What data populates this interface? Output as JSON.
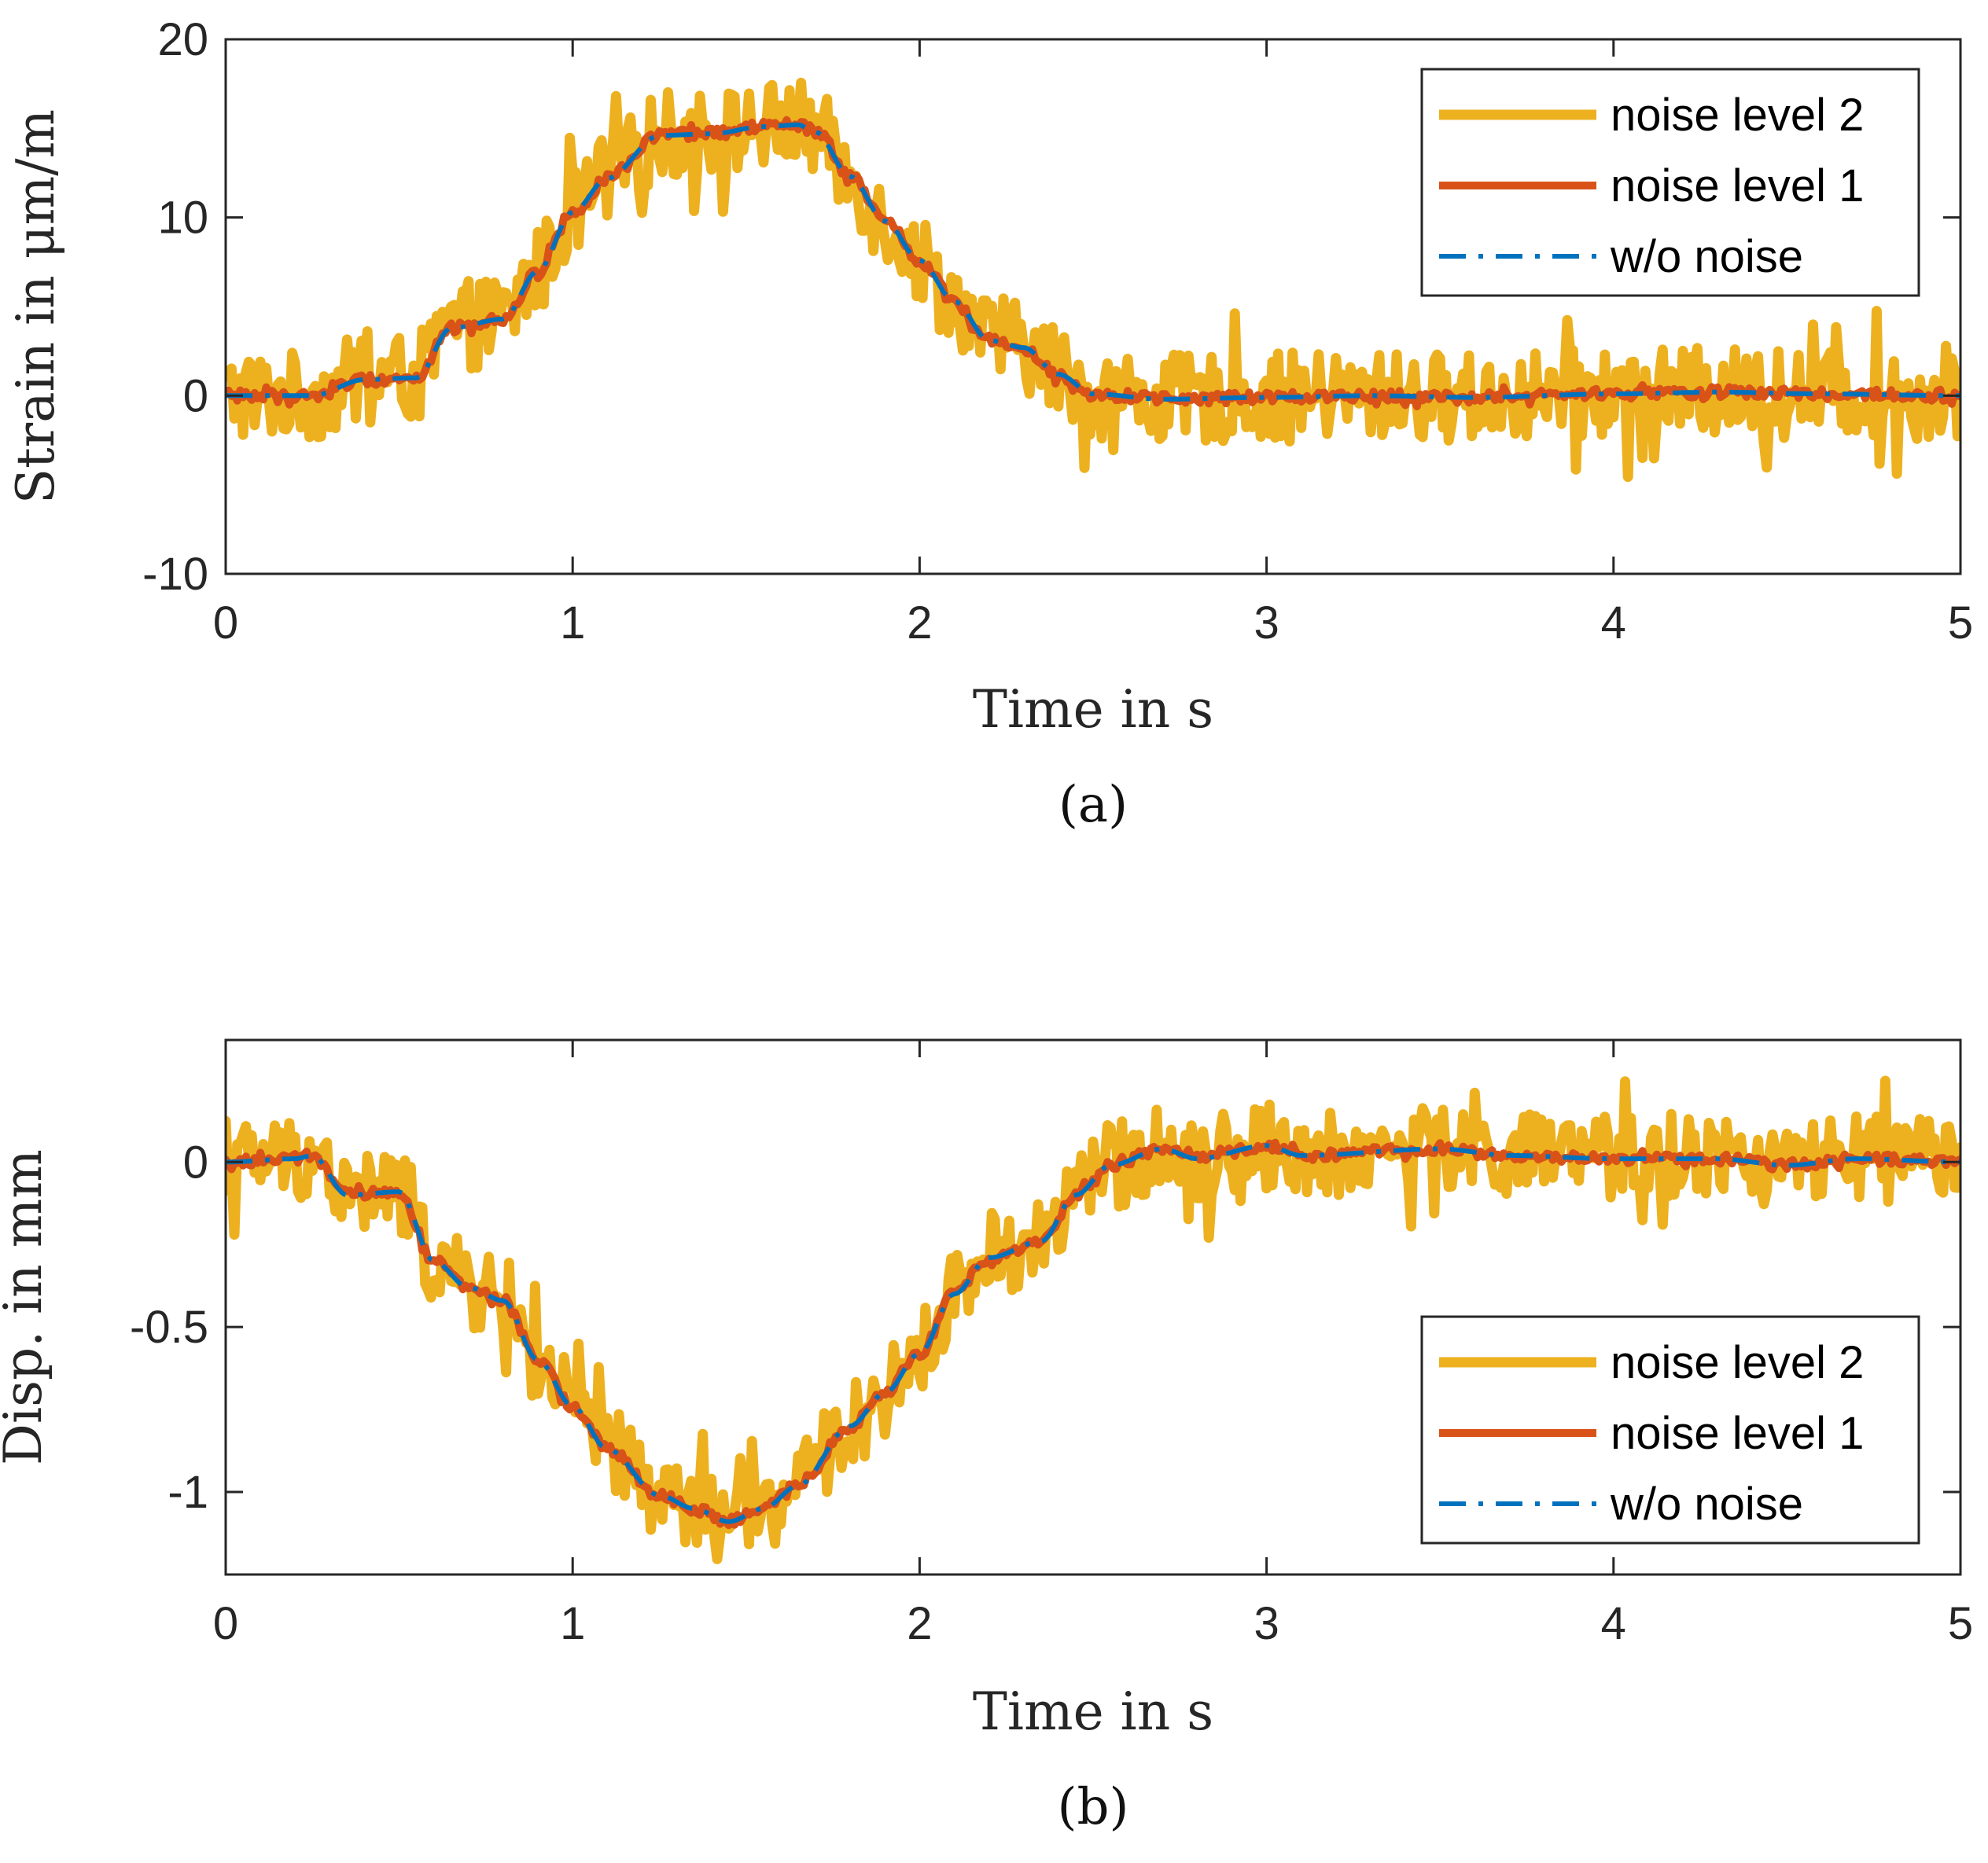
{
  "chart_data": [
    {
      "type": "line",
      "caption": "(a)",
      "xlabel": "Time in s",
      "ylabel": "Strain in μm/m",
      "xlim": [
        0,
        5
      ],
      "ylim": [
        -10,
        20
      ],
      "xticks": [
        "0",
        "1",
        "2",
        "3",
        "4",
        "5"
      ],
      "yticks": [
        "-10",
        "0",
        "10",
        "20"
      ],
      "grid": false,
      "legend_position": "top-right",
      "series": [
        {
          "name": "noise level 2",
          "color": "#EDB120",
          "style": "solid",
          "values": [
            [
              0,
              0
            ],
            [
              0.25,
              0
            ],
            [
              0.4,
              0.9
            ],
            [
              0.55,
              1.0
            ],
            [
              0.65,
              3.8
            ],
            [
              0.8,
              4.3
            ],
            [
              0.9,
              7.0
            ],
            [
              1.0,
              10.3
            ],
            [
              1.1,
              12.2
            ],
            [
              1.25,
              14.6
            ],
            [
              1.4,
              14.7
            ],
            [
              1.55,
              15.1
            ],
            [
              1.65,
              15.2
            ],
            [
              1.7,
              14.8
            ],
            [
              1.8,
              12.3
            ],
            [
              1.9,
              9.8
            ],
            [
              2.0,
              7.6
            ],
            [
              2.1,
              5.3
            ],
            [
              2.2,
              3.1
            ],
            [
              2.3,
              2.7
            ],
            [
              2.4,
              1.2
            ],
            [
              2.5,
              0.1
            ],
            [
              2.7,
              -0.2
            ],
            [
              3.0,
              -0.1
            ],
            [
              3.3,
              0
            ],
            [
              3.6,
              -0.1
            ],
            [
              4.0,
              0.1
            ],
            [
              4.3,
              0.2
            ],
            [
              4.6,
              0.1
            ],
            [
              5.0,
              0
            ]
          ],
          "noise_amplitude": 2.5
        },
        {
          "name": "noise level 1",
          "color": "#D95319",
          "style": "solid",
          "values": [
            [
              0,
              0
            ],
            [
              0.25,
              0
            ],
            [
              0.4,
              0.9
            ],
            [
              0.55,
              1.0
            ],
            [
              0.65,
              3.8
            ],
            [
              0.8,
              4.3
            ],
            [
              0.9,
              7.0
            ],
            [
              1.0,
              10.3
            ],
            [
              1.1,
              12.2
            ],
            [
              1.25,
              14.6
            ],
            [
              1.4,
              14.7
            ],
            [
              1.55,
              15.1
            ],
            [
              1.65,
              15.2
            ],
            [
              1.7,
              14.8
            ],
            [
              1.8,
              12.3
            ],
            [
              1.9,
              9.8
            ],
            [
              2.0,
              7.6
            ],
            [
              2.1,
              5.3
            ],
            [
              2.2,
              3.1
            ],
            [
              2.3,
              2.7
            ],
            [
              2.4,
              1.2
            ],
            [
              2.5,
              0.1
            ],
            [
              2.7,
              -0.2
            ],
            [
              3.0,
              -0.1
            ],
            [
              3.3,
              0
            ],
            [
              3.6,
              -0.1
            ],
            [
              4.0,
              0.1
            ],
            [
              4.3,
              0.2
            ],
            [
              4.6,
              0.1
            ],
            [
              5.0,
              0
            ]
          ],
          "noise_amplitude": 0.3
        },
        {
          "name": "w/o noise",
          "color": "#0072BD",
          "style": "dash-dot",
          "values": [
            [
              0,
              0
            ],
            [
              0.25,
              0
            ],
            [
              0.4,
              0.9
            ],
            [
              0.55,
              1.0
            ],
            [
              0.65,
              3.8
            ],
            [
              0.8,
              4.3
            ],
            [
              0.9,
              7.0
            ],
            [
              1.0,
              10.3
            ],
            [
              1.1,
              12.2
            ],
            [
              1.25,
              14.6
            ],
            [
              1.4,
              14.7
            ],
            [
              1.55,
              15.1
            ],
            [
              1.65,
              15.2
            ],
            [
              1.7,
              14.8
            ],
            [
              1.8,
              12.3
            ],
            [
              1.9,
              9.8
            ],
            [
              2.0,
              7.6
            ],
            [
              2.1,
              5.3
            ],
            [
              2.2,
              3.1
            ],
            [
              2.3,
              2.7
            ],
            [
              2.4,
              1.2
            ],
            [
              2.5,
              0.1
            ],
            [
              2.7,
              -0.2
            ],
            [
              3.0,
              -0.1
            ],
            [
              3.3,
              0
            ],
            [
              3.6,
              -0.1
            ],
            [
              4.0,
              0.1
            ],
            [
              4.3,
              0.2
            ],
            [
              4.6,
              0.1
            ],
            [
              5.0,
              0
            ]
          ],
          "noise_amplitude": 0
        }
      ]
    },
    {
      "type": "line",
      "caption": "(b)",
      "xlabel": "Time in s",
      "ylabel": "Disp. in mm",
      "xlim": [
        0,
        5
      ],
      "ylim": [
        -1.25,
        0.37
      ],
      "xticks": [
        "0",
        "1",
        "2",
        "3",
        "4",
        "5"
      ],
      "yticks": [
        "-1",
        "-0.5",
        "0"
      ],
      "ytick_values": [
        -1,
        -0.5,
        0
      ],
      "grid": false,
      "legend_position": "bottom-right",
      "series": [
        {
          "name": "noise level 2",
          "color": "#EDB120",
          "style": "solid",
          "values": [
            [
              0,
              0
            ],
            [
              0.2,
              0.01
            ],
            [
              0.25,
              0.02
            ],
            [
              0.35,
              -0.1
            ],
            [
              0.5,
              -0.09
            ],
            [
              0.6,
              -0.3
            ],
            [
              0.7,
              -0.38
            ],
            [
              0.8,
              -0.42
            ],
            [
              0.9,
              -0.6
            ],
            [
              1.0,
              -0.74
            ],
            [
              1.1,
              -0.87
            ],
            [
              1.25,
              -1.01
            ],
            [
              1.35,
              -1.05
            ],
            [
              1.45,
              -1.09
            ],
            [
              1.55,
              -1.05
            ],
            [
              1.65,
              -0.98
            ],
            [
              1.8,
              -0.8
            ],
            [
              1.9,
              -0.7
            ],
            [
              2.0,
              -0.58
            ],
            [
              2.1,
              -0.4
            ],
            [
              2.2,
              -0.29
            ],
            [
              2.35,
              -0.24
            ],
            [
              2.45,
              -0.1
            ],
            [
              2.55,
              -0.01
            ],
            [
              2.7,
              0.04
            ],
            [
              2.8,
              0.01
            ],
            [
              3.0,
              0.05
            ],
            [
              3.1,
              0.02
            ],
            [
              3.5,
              0.04
            ],
            [
              3.7,
              0.02
            ],
            [
              4.0,
              0.01
            ],
            [
              4.3,
              0.01
            ],
            [
              4.5,
              -0.01
            ],
            [
              4.7,
              0.01
            ],
            [
              5.0,
              0
            ]
          ],
          "noise_amplitude": 0.13
        },
        {
          "name": "noise level 1",
          "color": "#D95319",
          "style": "solid",
          "values": [
            [
              0,
              0
            ],
            [
              0.2,
              0.01
            ],
            [
              0.25,
              0.02
            ],
            [
              0.35,
              -0.1
            ],
            [
              0.5,
              -0.09
            ],
            [
              0.6,
              -0.3
            ],
            [
              0.7,
              -0.38
            ],
            [
              0.8,
              -0.42
            ],
            [
              0.9,
              -0.6
            ],
            [
              1.0,
              -0.74
            ],
            [
              1.1,
              -0.87
            ],
            [
              1.25,
              -1.01
            ],
            [
              1.35,
              -1.05
            ],
            [
              1.45,
              -1.09
            ],
            [
              1.55,
              -1.05
            ],
            [
              1.65,
              -0.98
            ],
            [
              1.8,
              -0.8
            ],
            [
              1.9,
              -0.7
            ],
            [
              2.0,
              -0.58
            ],
            [
              2.1,
              -0.4
            ],
            [
              2.2,
              -0.29
            ],
            [
              2.35,
              -0.24
            ],
            [
              2.45,
              -0.1
            ],
            [
              2.55,
              -0.01
            ],
            [
              2.7,
              0.04
            ],
            [
              2.8,
              0.01
            ],
            [
              3.0,
              0.05
            ],
            [
              3.1,
              0.02
            ],
            [
              3.5,
              0.04
            ],
            [
              3.7,
              0.02
            ],
            [
              4.0,
              0.01
            ],
            [
              4.3,
              0.01
            ],
            [
              4.5,
              -0.01
            ],
            [
              4.7,
              0.01
            ],
            [
              5.0,
              0
            ]
          ],
          "noise_amplitude": 0.015
        },
        {
          "name": "w/o noise",
          "color": "#0072BD",
          "style": "dash-dot",
          "values": [
            [
              0,
              0
            ],
            [
              0.2,
              0.01
            ],
            [
              0.25,
              0.02
            ],
            [
              0.35,
              -0.1
            ],
            [
              0.5,
              -0.09
            ],
            [
              0.6,
              -0.3
            ],
            [
              0.7,
              -0.38
            ],
            [
              0.8,
              -0.42
            ],
            [
              0.9,
              -0.6
            ],
            [
              1.0,
              -0.74
            ],
            [
              1.1,
              -0.87
            ],
            [
              1.25,
              -1.01
            ],
            [
              1.35,
              -1.05
            ],
            [
              1.45,
              -1.09
            ],
            [
              1.55,
              -1.05
            ],
            [
              1.65,
              -0.98
            ],
            [
              1.8,
              -0.8
            ],
            [
              1.9,
              -0.7
            ],
            [
              2.0,
              -0.58
            ],
            [
              2.1,
              -0.4
            ],
            [
              2.2,
              -0.29
            ],
            [
              2.35,
              -0.24
            ],
            [
              2.45,
              -0.1
            ],
            [
              2.55,
              -0.01
            ],
            [
              2.7,
              0.04
            ],
            [
              2.8,
              0.01
            ],
            [
              3.0,
              0.05
            ],
            [
              3.1,
              0.02
            ],
            [
              3.5,
              0.04
            ],
            [
              3.7,
              0.02
            ],
            [
              4.0,
              0.01
            ],
            [
              4.3,
              0.01
            ],
            [
              4.5,
              -0.01
            ],
            [
              4.7,
              0.01
            ],
            [
              5.0,
              0
            ]
          ],
          "noise_amplitude": 0
        }
      ]
    }
  ]
}
